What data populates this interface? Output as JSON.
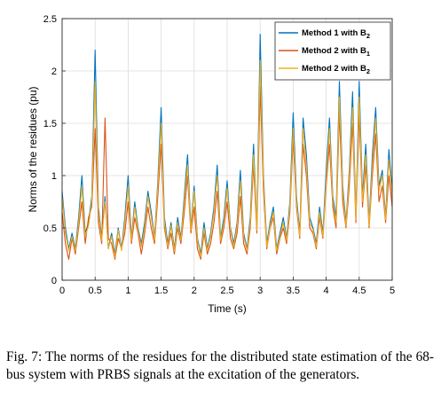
{
  "chart_data": {
    "type": "line",
    "xlabel": "Time (s)",
    "ylabel": "Norms of the residues (pu)",
    "xlim": [
      0,
      5
    ],
    "ylim": [
      0,
      2.5
    ],
    "xticks": [
      "0",
      "0.5",
      "1",
      "1.5",
      "2",
      "2.5",
      "3",
      "3.5",
      "4",
      "4.5",
      "5"
    ],
    "yticks": [
      "0",
      "0.5",
      "1",
      "1.5",
      "2",
      "2.5"
    ],
    "grid": true,
    "legend_position": "top-right",
    "series": [
      {
        "name": "Method 1 with B2",
        "name_base": "Method 1 with B",
        "name_sub": "2",
        "color": "#0072BD",
        "x": [
          0,
          0.05,
          0.1,
          0.15,
          0.2,
          0.25,
          0.3,
          0.35,
          0.4,
          0.45,
          0.5,
          0.55,
          0.6,
          0.65,
          0.7,
          0.75,
          0.8,
          0.85,
          0.9,
          0.95,
          1,
          1.05,
          1.1,
          1.15,
          1.2,
          1.25,
          1.3,
          1.35,
          1.4,
          1.45,
          1.5,
          1.55,
          1.6,
          1.65,
          1.7,
          1.75,
          1.8,
          1.85,
          1.9,
          1.95,
          2,
          2.05,
          2.1,
          2.15,
          2.2,
          2.25,
          2.3,
          2.35,
          2.4,
          2.45,
          2.5,
          2.55,
          2.6,
          2.65,
          2.7,
          2.75,
          2.8,
          2.85,
          2.9,
          2.95,
          3,
          3.05,
          3.1,
          3.15,
          3.2,
          3.25,
          3.3,
          3.35,
          3.4,
          3.45,
          3.5,
          3.55,
          3.6,
          3.65,
          3.7,
          3.75,
          3.8,
          3.85,
          3.9,
          3.95,
          4,
          4.05,
          4.1,
          4.15,
          4.2,
          4.25,
          4.3,
          4.35,
          4.4,
          4.45,
          4.5,
          4.55,
          4.6,
          4.65,
          4.7,
          4.75,
          4.8,
          4.85,
          4.9,
          4.95,
          5
        ],
        "values": [
          0.85,
          0.5,
          0.3,
          0.45,
          0.3,
          0.6,
          1.0,
          0.45,
          0.55,
          0.8,
          2.2,
          0.7,
          0.4,
          0.8,
          0.3,
          0.45,
          0.25,
          0.5,
          0.3,
          0.6,
          1.0,
          0.4,
          0.75,
          0.5,
          0.35,
          0.55,
          0.85,
          0.65,
          0.4,
          0.95,
          1.65,
          0.6,
          0.35,
          0.55,
          0.3,
          0.6,
          0.4,
          0.8,
          1.2,
          0.5,
          0.9,
          0.4,
          0.25,
          0.55,
          0.3,
          0.45,
          0.7,
          1.1,
          0.4,
          0.6,
          0.95,
          0.5,
          0.35,
          0.55,
          1.05,
          0.45,
          0.3,
          0.6,
          1.3,
          0.5,
          2.35,
          1.0,
          0.35,
          0.55,
          0.7,
          0.3,
          0.45,
          0.6,
          0.4,
          0.75,
          1.6,
          0.8,
          0.45,
          1.55,
          1.2,
          0.6,
          0.5,
          0.35,
          0.7,
          0.45,
          1.05,
          1.55,
          0.8,
          0.6,
          1.9,
          0.9,
          0.55,
          1.05,
          1.8,
          0.6,
          1.9,
          0.8,
          1.3,
          0.55,
          1.2,
          1.65,
          0.9,
          1.05,
          0.6,
          1.25,
          0.85
        ]
      },
      {
        "name": "Method 2 with B1",
        "name_base": "Method 2 with B",
        "name_sub": "1",
        "color": "#D95319",
        "x": [
          0,
          0.05,
          0.1,
          0.15,
          0.2,
          0.25,
          0.3,
          0.35,
          0.4,
          0.45,
          0.5,
          0.55,
          0.6,
          0.65,
          0.7,
          0.75,
          0.8,
          0.85,
          0.9,
          0.95,
          1,
          1.05,
          1.1,
          1.15,
          1.2,
          1.25,
          1.3,
          1.35,
          1.4,
          1.45,
          1.5,
          1.55,
          1.6,
          1.65,
          1.7,
          1.75,
          1.8,
          1.85,
          1.9,
          1.95,
          2,
          2.05,
          2.1,
          2.15,
          2.2,
          2.25,
          2.3,
          2.35,
          2.4,
          2.45,
          2.5,
          2.55,
          2.6,
          2.65,
          2.7,
          2.75,
          2.8,
          2.85,
          2.9,
          2.95,
          3,
          3.05,
          3.1,
          3.15,
          3.2,
          3.25,
          3.3,
          3.35,
          3.4,
          3.45,
          3.5,
          3.55,
          3.6,
          3.65,
          3.7,
          3.75,
          3.8,
          3.85,
          3.9,
          3.95,
          4,
          4.05,
          4.1,
          4.15,
          4.2,
          4.25,
          4.3,
          4.35,
          4.4,
          4.45,
          4.5,
          4.55,
          4.6,
          4.65,
          4.7,
          4.75,
          4.8,
          4.85,
          4.9,
          4.95,
          5
        ],
        "values": [
          0.65,
          0.35,
          0.2,
          0.4,
          0.25,
          0.5,
          0.75,
          0.35,
          0.6,
          0.7,
          1.45,
          0.55,
          0.35,
          1.55,
          0.4,
          0.35,
          0.2,
          0.4,
          0.3,
          0.45,
          0.75,
          0.35,
          0.6,
          0.45,
          0.25,
          0.45,
          0.7,
          0.5,
          0.35,
          0.8,
          1.3,
          0.5,
          0.3,
          0.45,
          0.25,
          0.5,
          0.35,
          0.65,
          1.0,
          0.45,
          0.7,
          0.3,
          0.2,
          0.45,
          0.25,
          0.35,
          0.55,
          0.85,
          0.35,
          0.5,
          0.75,
          0.4,
          0.3,
          0.45,
          0.8,
          0.35,
          0.25,
          0.5,
          1.1,
          0.45,
          1.85,
          0.85,
          0.3,
          0.5,
          0.6,
          0.25,
          0.4,
          0.5,
          0.35,
          0.65,
          1.35,
          0.7,
          0.4,
          1.3,
          1.0,
          0.5,
          0.45,
          0.3,
          0.6,
          0.4,
          0.9,
          1.3,
          0.7,
          0.5,
          1.6,
          0.75,
          0.5,
          0.9,
          1.5,
          0.55,
          1.6,
          0.7,
          1.1,
          0.5,
          1.0,
          1.4,
          0.75,
          0.9,
          0.55,
          1.0,
          0.7
        ]
      },
      {
        "name": "Method 2 with B2",
        "name_base": "Method 2 with B",
        "name_sub": "2",
        "color": "#EDB120",
        "x": [
          0,
          0.05,
          0.1,
          0.15,
          0.2,
          0.25,
          0.3,
          0.35,
          0.4,
          0.45,
          0.5,
          0.55,
          0.6,
          0.65,
          0.7,
          0.75,
          0.8,
          0.85,
          0.9,
          0.95,
          1,
          1.05,
          1.1,
          1.15,
          1.2,
          1.25,
          1.3,
          1.35,
          1.4,
          1.45,
          1.5,
          1.55,
          1.6,
          1.65,
          1.7,
          1.75,
          1.8,
          1.85,
          1.9,
          1.95,
          2,
          2.05,
          2.1,
          2.15,
          2.2,
          2.25,
          2.3,
          2.35,
          2.4,
          2.45,
          2.5,
          2.55,
          2.6,
          2.65,
          2.7,
          2.75,
          2.8,
          2.85,
          2.9,
          2.95,
          3,
          3.05,
          3.1,
          3.15,
          3.2,
          3.25,
          3.3,
          3.35,
          3.4,
          3.45,
          3.5,
          3.55,
          3.6,
          3.65,
          3.7,
          3.75,
          3.8,
          3.85,
          3.9,
          3.95,
          4,
          4.05,
          4.1,
          4.15,
          4.2,
          4.25,
          4.3,
          4.35,
          4.4,
          4.45,
          4.5,
          4.55,
          4.6,
          4.65,
          4.7,
          4.75,
          4.8,
          4.85,
          4.9,
          4.95,
          5
        ],
        "values": [
          0.8,
          0.45,
          0.28,
          0.42,
          0.28,
          0.55,
          0.9,
          0.42,
          0.52,
          0.75,
          1.9,
          0.65,
          0.38,
          0.75,
          0.3,
          0.42,
          0.22,
          0.48,
          0.28,
          0.55,
          0.9,
          0.38,
          0.7,
          0.48,
          0.32,
          0.5,
          0.8,
          0.6,
          0.38,
          0.9,
          1.5,
          0.55,
          0.32,
          0.52,
          0.28,
          0.55,
          0.38,
          0.75,
          1.1,
          0.48,
          0.85,
          0.38,
          0.22,
          0.5,
          0.28,
          0.42,
          0.65,
          1.0,
          0.38,
          0.55,
          0.88,
          0.48,
          0.32,
          0.52,
          0.95,
          0.42,
          0.28,
          0.55,
          1.2,
          0.48,
          2.1,
          0.95,
          0.32,
          0.52,
          0.65,
          0.28,
          0.42,
          0.55,
          0.38,
          0.7,
          1.45,
          0.75,
          0.42,
          1.45,
          1.1,
          0.55,
          0.48,
          0.32,
          0.65,
          0.42,
          0.95,
          1.45,
          0.75,
          0.55,
          1.75,
          0.85,
          0.52,
          1.0,
          1.65,
          0.58,
          1.75,
          0.75,
          1.2,
          0.52,
          1.1,
          1.55,
          0.85,
          1.0,
          0.58,
          1.15,
          0.8
        ]
      }
    ]
  },
  "caption": "Fig. 7: The norms of the residues for the distributed state estimation of the 68-bus system with PRBS signals at the excitation of the generators."
}
